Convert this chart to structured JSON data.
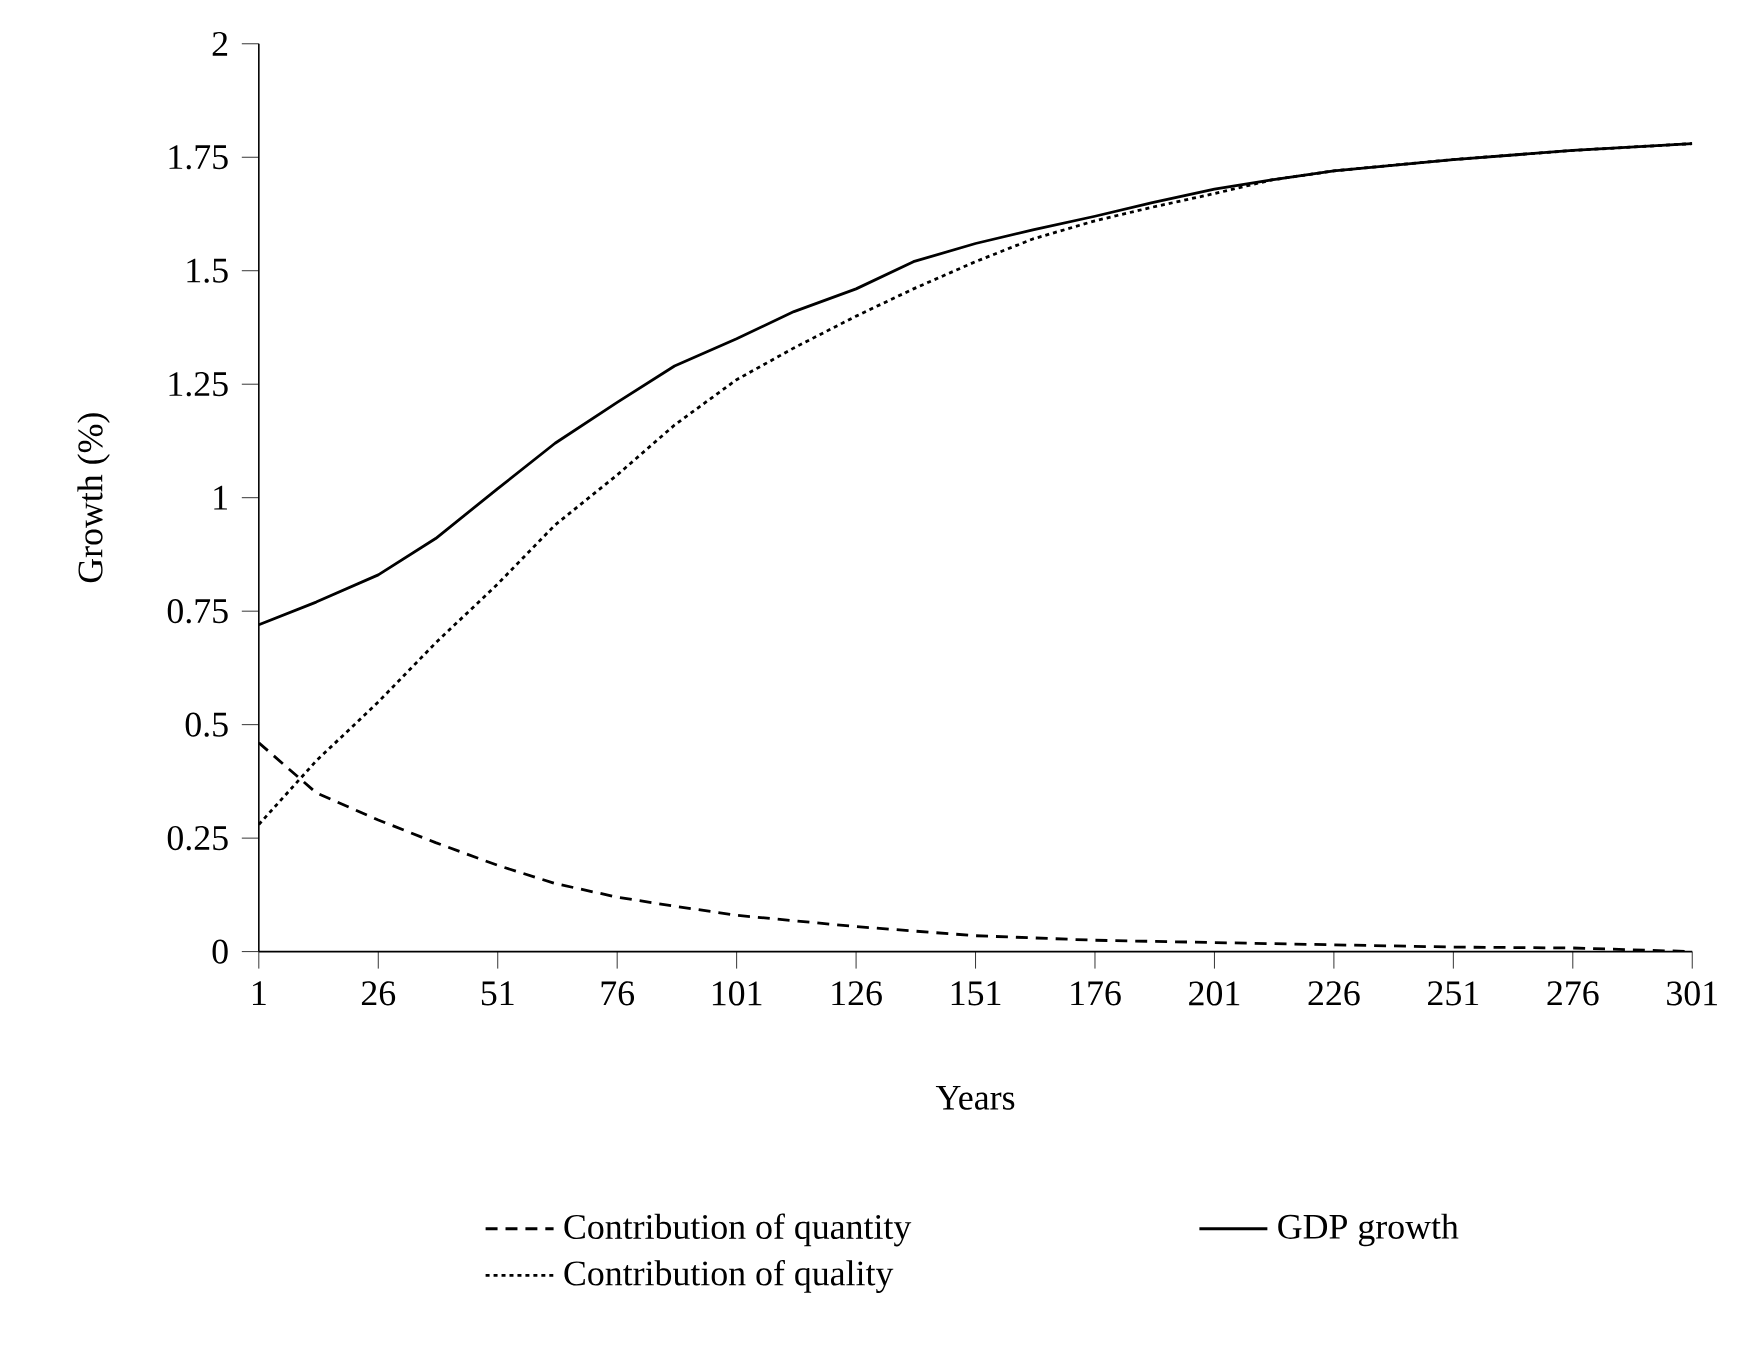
{
  "chart_data": {
    "type": "line",
    "xlabel": "Years",
    "ylabel": "Growth (%)",
    "xlim": [
      1,
      301
    ],
    "xticks": [
      1,
      26,
      51,
      76,
      101,
      126,
      151,
      176,
      201,
      226,
      251,
      276,
      301
    ],
    "ylim": [
      0,
      2
    ],
    "yticks": [
      0,
      0.25,
      0.5,
      0.75,
      1,
      1.25,
      1.5,
      1.75,
      2
    ],
    "grid": false,
    "legend": "bottom",
    "marker": "none",
    "series": [
      {
        "name": "Contribution of quantity",
        "color": "#000000",
        "line_style": "dashed",
        "x": [
          1,
          13,
          26,
          38,
          51,
          63,
          76,
          88,
          101,
          126,
          151,
          176,
          201,
          226,
          251,
          276,
          301
        ],
        "values": [
          0.46,
          0.35,
          0.29,
          0.24,
          0.19,
          0.15,
          0.12,
          0.1,
          0.08,
          0.055,
          0.035,
          0.025,
          0.02,
          0.015,
          0.01,
          0.008,
          0.0
        ]
      },
      {
        "name": "GDP growth",
        "color": "#000000",
        "line_style": "solid",
        "x": [
          1,
          13,
          26,
          38,
          51,
          63,
          76,
          88,
          101,
          113,
          126,
          138,
          151,
          163,
          176,
          188,
          201,
          213,
          226,
          251,
          276,
          301
        ],
        "values": [
          0.72,
          0.77,
          0.83,
          0.91,
          1.02,
          1.12,
          1.21,
          1.29,
          1.35,
          1.41,
          1.46,
          1.52,
          1.56,
          1.59,
          1.62,
          1.65,
          1.68,
          1.7,
          1.72,
          1.745,
          1.765,
          1.78
        ]
      },
      {
        "name": "Contribution of quality",
        "color": "#000000",
        "line_style": "dotted",
        "x": [
          1,
          13,
          26,
          38,
          51,
          63,
          76,
          88,
          101,
          113,
          126,
          138,
          151,
          163,
          176,
          188,
          201,
          213,
          226,
          251,
          276,
          301
        ],
        "values": [
          0.28,
          0.42,
          0.55,
          0.68,
          0.81,
          0.94,
          1.05,
          1.16,
          1.26,
          1.33,
          1.4,
          1.46,
          1.52,
          1.57,
          1.61,
          1.64,
          1.67,
          1.7,
          1.72,
          1.745,
          1.765,
          1.78
        ]
      }
    ]
  }
}
